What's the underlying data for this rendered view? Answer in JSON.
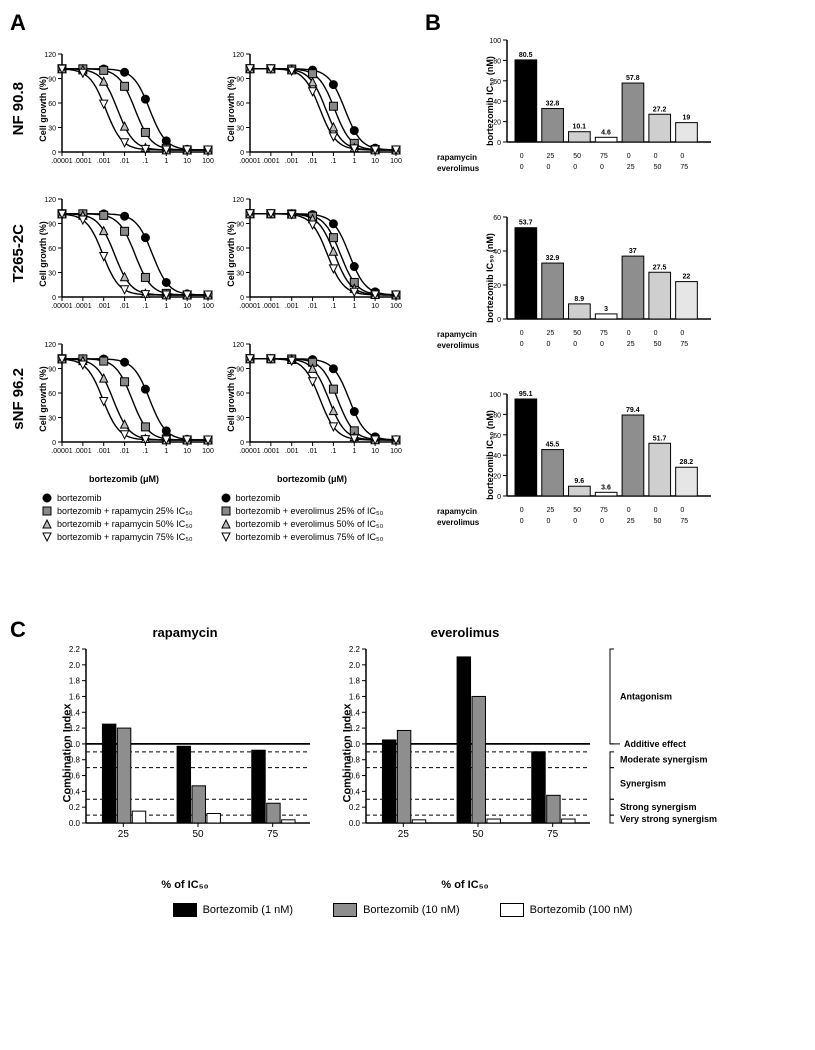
{
  "panelA": {
    "label": "A",
    "cell_lines": [
      "NF 90.8",
      "T265-2C",
      "sNF 96.2"
    ],
    "y_label": "Cell growth (%)",
    "x_label": "bortezomib (μM)",
    "y_ticks": [
      0,
      30,
      60,
      90,
      120
    ],
    "x_ticks": [
      ".00001",
      ".0001",
      ".001",
      ".01",
      ".1",
      "1",
      "10",
      "100"
    ],
    "charts": [
      {
        "shifts": [
          0.6,
          0.5,
          0.38,
          0.3
        ]
      },
      {
        "shifts": [
          0.65,
          0.58,
          0.52,
          0.48
        ]
      },
      {
        "shifts": [
          0.62,
          0.5,
          0.36,
          0.28
        ]
      },
      {
        "shifts": [
          0.68,
          0.62,
          0.58,
          0.53
        ]
      },
      {
        "shifts": [
          0.6,
          0.48,
          0.35,
          0.28
        ]
      },
      {
        "shifts": [
          0.68,
          0.6,
          0.54,
          0.48
        ]
      }
    ],
    "legend_left": [
      {
        "marker": "circle",
        "label": "bortezomib"
      },
      {
        "marker": "square",
        "label": "bortezomib + rapamycin 25% IC₅₀"
      },
      {
        "marker": "triangle",
        "label": "bortezomib + rapamycin 50% IC₅₀"
      },
      {
        "marker": "tri-down",
        "label": "bortezomib + rapamycin 75% IC₅₀"
      }
    ],
    "legend_right": [
      {
        "marker": "circle",
        "label": "bortezomib"
      },
      {
        "marker": "square",
        "label": "bortezomib + everolimus 25% of IC₅₀"
      },
      {
        "marker": "triangle",
        "label": "bortezomib + everolimus 50% of IC₅₀"
      },
      {
        "marker": "tri-down",
        "label": "bortezomib + everolimus 75% of IC₅₀"
      }
    ]
  },
  "panelB": {
    "label": "B",
    "y_label": "bortezomib IC₅₀ (nM)",
    "row_labels": [
      "rapamycin",
      "everolimus"
    ],
    "concentrations": [
      [
        0,
        25,
        50,
        75,
        0,
        0,
        0
      ],
      [
        0,
        0,
        0,
        0,
        25,
        50,
        75
      ]
    ],
    "colors": [
      "#000000",
      "#8e8e8e",
      "#cfcfcf",
      "#ffffff",
      "#8e8e8e",
      "#cfcfcf",
      "#e6e6e6"
    ],
    "charts": [
      {
        "ymax": 100,
        "ystep": 20,
        "values": [
          80.5,
          32.8,
          10.1,
          4.6,
          57.8,
          27.2,
          19
        ]
      },
      {
        "ymax": 60,
        "ystep": 20,
        "values": [
          53.7,
          32.9,
          8.9,
          3.0,
          37.0,
          27.5,
          22.0
        ]
      },
      {
        "ymax": 100,
        "ystep": 20,
        "values": [
          95.1,
          45.5,
          9.6,
          3.6,
          79.4,
          51.7,
          28.2
        ]
      }
    ]
  },
  "panelC": {
    "label": "C",
    "x_label": "% of IC₅₀",
    "y_label": "Combination Index",
    "y_ticks": [
      0.0,
      0.2,
      0.4,
      0.6,
      0.8,
      1.0,
      1.2,
      1.4,
      1.6,
      1.8,
      2.0,
      2.2
    ],
    "x_groups": [
      25,
      50,
      75
    ],
    "colors": [
      "#000000",
      "#8e8e8e",
      "#ffffff"
    ],
    "thresholds": {
      "solid": 1.0,
      "dashed": [
        0.9,
        0.7,
        0.3,
        0.1
      ]
    },
    "annotations": [
      {
        "label": "Antagonism",
        "from": 1.0,
        "to": 2.2
      },
      {
        "label": "Additive effect",
        "at": 1.0
      },
      {
        "label": "Moderate synergism",
        "from": 0.7,
        "to": 0.9
      },
      {
        "label": "Synergism",
        "from": 0.3,
        "to": 0.7
      },
      {
        "label": "Strong synergism",
        "from": 0.1,
        "to": 0.3
      },
      {
        "label": "Very strong synergism",
        "from": 0.0,
        "to": 0.1
      }
    ],
    "charts": [
      {
        "title": "rapamycin",
        "vals": [
          [
            1.25,
            1.2,
            0.15
          ],
          [
            0.97,
            0.47,
            0.12
          ],
          [
            0.92,
            0.25,
            0.04
          ]
        ]
      },
      {
        "title": "everolimus",
        "vals": [
          [
            1.05,
            1.17,
            0.04
          ],
          [
            2.1,
            1.6,
            0.05
          ],
          [
            0.9,
            0.35,
            0.05
          ]
        ]
      }
    ],
    "legend": [
      {
        "color": "#000000",
        "label": "Bortezomib (1 nM)"
      },
      {
        "color": "#8e8e8e",
        "label": "Bortezomib (10 nM)"
      },
      {
        "color": "#ffffff",
        "label": "Bortezomib (100 nM)"
      }
    ]
  }
}
